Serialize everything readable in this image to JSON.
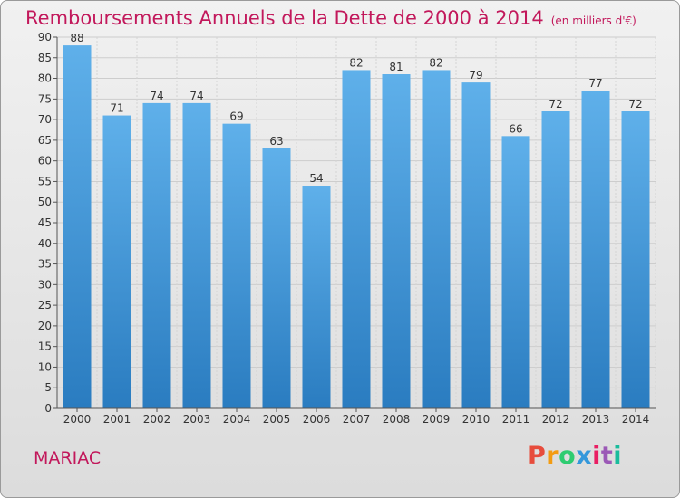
{
  "header": {
    "title": "Remboursements Annuels de la Dette de 2000 à 2014",
    "unit": "(en milliers d'€)"
  },
  "footer": {
    "commune": "MARIAC",
    "logo_text": "Proxiti"
  },
  "colors": {
    "title": "#c2185b",
    "bar_light": "#5fb0ea",
    "bar_dark": "#2a7cc0",
    "logo_letters": [
      "#e74c3c",
      "#f39c12",
      "#2ecc71",
      "#3498db",
      "#e91e63",
      "#9b59b6",
      "#1abc9c"
    ]
  },
  "chart_data": {
    "type": "bar",
    "title": "Remboursements Annuels de la Dette de 2000 à 2014",
    "subtitle": "(en milliers d'€)",
    "categories": [
      "2000",
      "2001",
      "2002",
      "2003",
      "2004",
      "2005",
      "2006",
      "2007",
      "2008",
      "2009",
      "2010",
      "2011",
      "2012",
      "2013",
      "2014"
    ],
    "values": [
      88,
      71,
      74,
      74,
      69,
      63,
      54,
      82,
      81,
      82,
      79,
      66,
      72,
      77,
      72
    ],
    "ylim": [
      0,
      90
    ],
    "yticks": [
      0,
      5,
      10,
      15,
      20,
      25,
      30,
      35,
      40,
      45,
      50,
      55,
      60,
      65,
      70,
      75,
      80,
      85,
      90
    ],
    "grid": true,
    "legend": "none"
  }
}
